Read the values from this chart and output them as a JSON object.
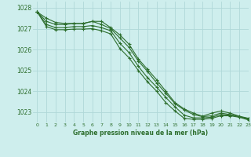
{
  "xlabel": "Graphe pression niveau de la mer (hPa)",
  "bg_color": "#ceeeed",
  "grid_color": "#b0d8d8",
  "line_color": "#2d6e2d",
  "xlim": [
    -0.5,
    23
  ],
  "ylim": [
    1022.5,
    1028.3
  ],
  "yticks": [
    1023,
    1024,
    1025,
    1026,
    1027,
    1028
  ],
  "xticks": [
    0,
    1,
    2,
    3,
    4,
    5,
    6,
    7,
    8,
    9,
    10,
    11,
    12,
    13,
    14,
    15,
    16,
    17,
    18,
    19,
    20,
    21,
    22,
    23
  ],
  "series": [
    [
      1027.8,
      1027.5,
      1027.3,
      1027.25,
      1027.25,
      1027.25,
      1027.35,
      1027.35,
      1027.05,
      1026.7,
      1026.25,
      1025.55,
      1025.05,
      1024.55,
      1024.0,
      1023.45,
      1023.15,
      1022.95,
      1022.8,
      1022.95,
      1023.05,
      1022.95,
      1022.8,
      1022.7
    ],
    [
      1027.8,
      1027.35,
      1027.2,
      1027.2,
      1027.25,
      1027.25,
      1027.35,
      1027.2,
      1027.0,
      1026.55,
      1026.1,
      1025.45,
      1024.95,
      1024.4,
      1023.9,
      1023.4,
      1023.1,
      1022.88,
      1022.78,
      1022.82,
      1022.95,
      1022.88,
      1022.78,
      1022.68
    ],
    [
      1027.8,
      1027.2,
      1027.05,
      1027.05,
      1027.1,
      1027.1,
      1027.15,
      1027.05,
      1026.9,
      1026.3,
      1025.85,
      1025.2,
      1024.65,
      1024.2,
      1023.7,
      1023.25,
      1022.85,
      1022.72,
      1022.72,
      1022.75,
      1022.88,
      1022.85,
      1022.78,
      1022.65
    ],
    [
      1027.8,
      1027.1,
      1026.95,
      1026.95,
      1026.98,
      1026.98,
      1027.0,
      1026.9,
      1026.75,
      1026.05,
      1025.6,
      1025.0,
      1024.45,
      1024.0,
      1023.45,
      1023.05,
      1022.7,
      1022.65,
      1022.65,
      1022.7,
      1022.82,
      1022.82,
      1022.75,
      1022.62
    ]
  ]
}
